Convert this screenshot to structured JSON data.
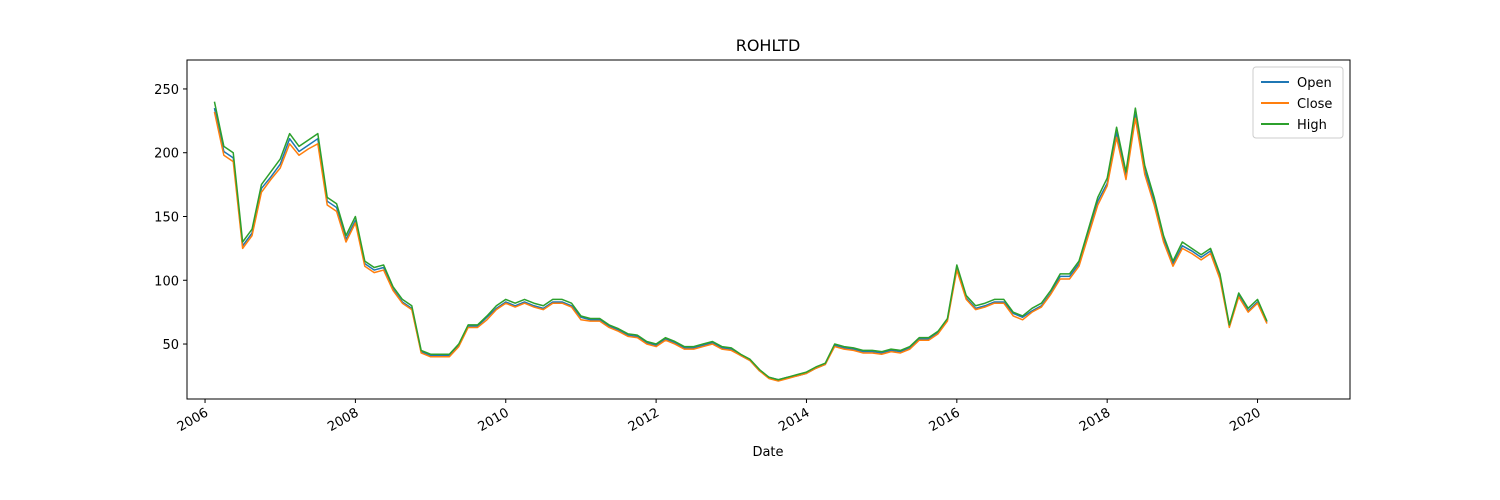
{
  "chart_data": {
    "type": "line",
    "title": "ROHLTD",
    "xlabel": "Date",
    "x": [
      2006.125,
      2006.25,
      2006.375,
      2006.5,
      2006.625,
      2006.75,
      2006.875,
      2007,
      2007.125,
      2007.25,
      2007.375,
      2007.5,
      2007.625,
      2007.75,
      2007.875,
      2008,
      2008.125,
      2008.25,
      2008.375,
      2008.5,
      2008.625,
      2008.75,
      2008.875,
      2009,
      2009.125,
      2009.25,
      2009.375,
      2009.5,
      2009.625,
      2009.75,
      2009.875,
      2010,
      2010.125,
      2010.25,
      2010.375,
      2010.5,
      2010.625,
      2010.75,
      2010.875,
      2011,
      2011.125,
      2011.25,
      2011.375,
      2011.5,
      2011.625,
      2011.75,
      2011.875,
      2012,
      2012.125,
      2012.25,
      2012.375,
      2012.5,
      2012.625,
      2012.75,
      2012.875,
      2013,
      2013.125,
      2013.25,
      2013.375,
      2013.5,
      2013.625,
      2013.75,
      2013.875,
      2014,
      2014.125,
      2014.25,
      2014.375,
      2014.5,
      2014.625,
      2014.75,
      2014.875,
      2015,
      2015.125,
      2015.25,
      2015.375,
      2015.5,
      2015.625,
      2015.75,
      2015.875,
      2016,
      2016.125,
      2016.25,
      2016.375,
      2016.5,
      2016.625,
      2016.75,
      2016.875,
      2017,
      2017.125,
      2017.25,
      2017.375,
      2017.5,
      2017.625,
      2017.75,
      2017.875,
      2018,
      2018.125,
      2018.25,
      2018.375,
      2018.5,
      2018.625,
      2018.75,
      2018.875,
      2019,
      2019.125,
      2019.25,
      2019.375,
      2019.5,
      2019.625,
      2019.75,
      2019.875,
      2020,
      2020.125
    ],
    "series": [
      {
        "name": "Open",
        "color": "#1f77b4",
        "values": [
          235,
          201,
          196,
          127,
          137,
          172,
          181,
          191,
          211,
          201,
          206,
          211,
          162,
          157,
          132,
          147,
          113,
          108,
          110,
          93,
          83,
          78,
          44,
          41,
          41,
          41,
          49,
          64,
          64,
          71,
          78,
          83,
          80,
          83,
          80,
          78,
          83,
          83,
          80,
          71,
          69,
          69,
          64,
          61,
          57,
          56,
          51,
          49,
          54,
          51,
          47,
          47,
          49,
          51,
          47,
          46,
          41,
          37,
          29,
          24,
          22,
          24,
          25,
          27,
          31,
          34,
          49,
          47,
          46,
          44,
          44,
          43,
          45,
          44,
          47,
          54,
          54,
          59,
          69,
          110,
          86,
          78,
          80,
          83,
          83,
          74,
          71,
          76,
          80,
          90,
          103,
          103,
          113,
          137,
          162,
          176,
          216,
          181,
          230,
          186,
          162,
          132,
          113,
          127,
          123,
          118,
          123,
          103,
          64,
          88,
          76,
          83,
          67
        ]
      },
      {
        "name": "Close",
        "color": "#ff7f0e",
        "values": [
          232,
          198,
          193,
          125,
          135,
          169,
          179,
          188,
          207,
          198,
          203,
          207,
          159,
          154,
          130,
          145,
          111,
          106,
          108,
          92,
          82,
          77,
          43,
          40,
          40,
          40,
          48,
          63,
          63,
          69,
          77,
          82,
          79,
          82,
          79,
          77,
          82,
          82,
          79,
          69,
          68,
          68,
          63,
          60,
          56,
          55,
          50,
          48,
          53,
          50,
          46,
          46,
          48,
          50,
          46,
          45,
          41,
          37,
          29,
          23,
          21,
          23,
          25,
          27,
          31,
          34,
          48,
          46,
          45,
          43,
          43,
          42,
          44,
          43,
          46,
          53,
          53,
          58,
          68,
          108,
          85,
          77,
          79,
          82,
          82,
          72,
          69,
          75,
          79,
          89,
          101,
          101,
          111,
          135,
          159,
          174,
          212,
          179,
          227,
          183,
          159,
          130,
          111,
          125,
          121,
          116,
          121,
          101,
          63,
          87,
          75,
          82,
          66
        ]
      },
      {
        "name": "High",
        "color": "#2ca02c",
        "values": [
          240,
          205,
          200,
          130,
          140,
          175,
          185,
          195,
          215,
          205,
          210,
          215,
          165,
          160,
          135,
          150,
          115,
          110,
          112,
          95,
          85,
          80,
          45,
          42,
          42,
          42,
          50,
          65,
          65,
          72,
          80,
          85,
          82,
          85,
          82,
          80,
          85,
          85,
          82,
          72,
          70,
          70,
          65,
          62,
          58,
          57,
          52,
          50,
          55,
          52,
          48,
          48,
          50,
          52,
          48,
          47,
          42,
          38,
          30,
          24,
          22,
          24,
          26,
          28,
          32,
          35,
          50,
          48,
          47,
          45,
          45,
          44,
          46,
          45,
          48,
          55,
          55,
          60,
          70,
          112,
          88,
          80,
          82,
          85,
          85,
          75,
          72,
          78,
          82,
          92,
          105,
          105,
          115,
          140,
          165,
          180,
          220,
          185,
          235,
          190,
          165,
          135,
          115,
          130,
          125,
          120,
          125,
          105,
          65,
          90,
          78,
          85,
          68
        ]
      }
    ],
    "xlim": [
      2005.76,
      2021.23
    ],
    "xticks": [
      2006,
      2008,
      2010,
      2012,
      2014,
      2016,
      2018,
      2020
    ],
    "ylim": [
      6.9,
      272.7
    ],
    "yticks": [
      50,
      100,
      150,
      200,
      250
    ],
    "legend": "upper right"
  }
}
